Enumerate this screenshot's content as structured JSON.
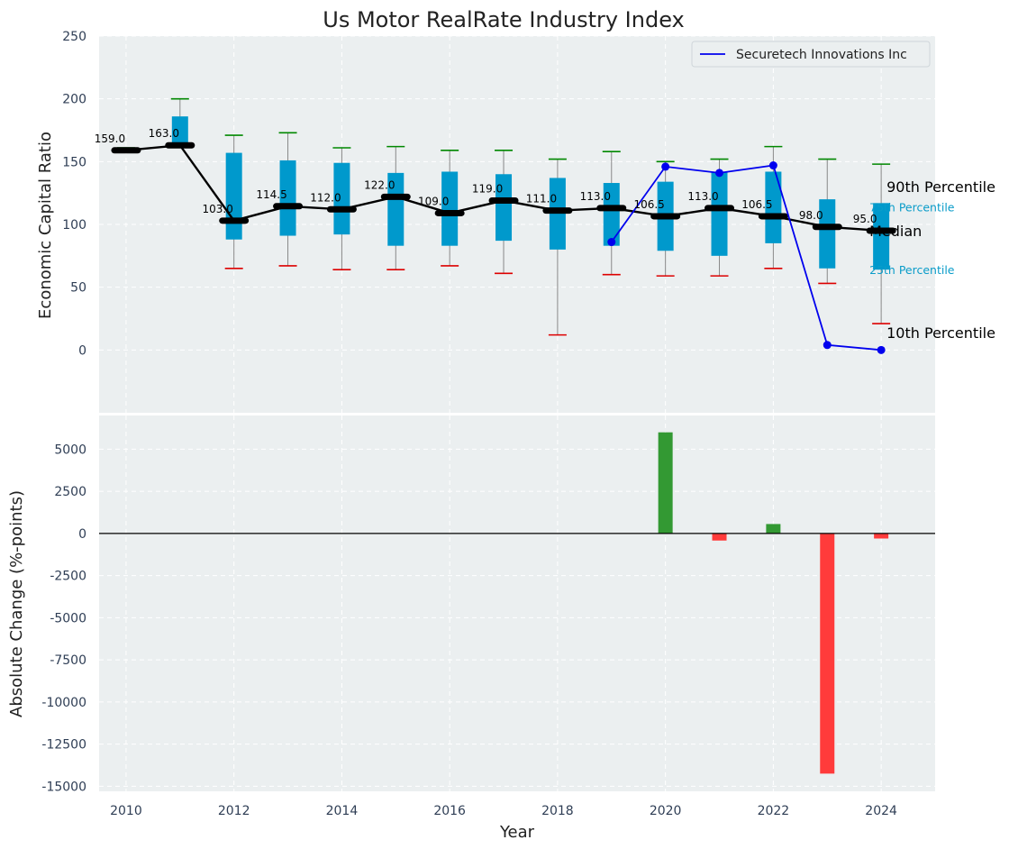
{
  "chart_data": [
    {
      "type": "box",
      "title": "Us Motor RealRate Industry Index",
      "xlabel": "",
      "ylabel": "Economic Capital Ratio",
      "ylim": [
        -50,
        250
      ],
      "yticks": [
        0,
        50,
        100,
        150,
        200,
        250
      ],
      "xlim": [
        2009.5,
        2025
      ],
      "x": [
        2010,
        2011,
        2012,
        2013,
        2014,
        2015,
        2016,
        2017,
        2018,
        2019,
        2020,
        2021,
        2022,
        2023,
        2024
      ],
      "p10": [
        159,
        163,
        65,
        67,
        64,
        64,
        67,
        61,
        12,
        60,
        59,
        59,
        65,
        53,
        21
      ],
      "p25": [
        159,
        163,
        88,
        91,
        92,
        83,
        83,
        87,
        80,
        83,
        79,
        75,
        85,
        65,
        64
      ],
      "median": [
        159.0,
        163.0,
        103.0,
        114.5,
        112.0,
        122.0,
        109.0,
        119.0,
        111.0,
        113.0,
        106.5,
        113.0,
        106.5,
        98.0,
        95.0
      ],
      "median_labels": [
        "159.0",
        "163.0",
        "103.0",
        "114.5",
        "112.0",
        "122.0",
        "109.0",
        "119.0",
        "111.0",
        "113.0",
        "106.5",
        "113.0",
        "106.5",
        "98.0",
        "95.0"
      ],
      "p75": [
        161,
        186,
        157,
        151,
        149,
        141,
        142,
        140,
        137,
        133,
        134,
        142,
        142,
        120,
        117
      ],
      "p90": [
        161,
        200,
        171,
        173,
        161,
        162,
        159,
        159,
        152,
        158,
        150,
        152,
        162,
        152,
        148
      ],
      "series": [
        {
          "name": "Securetech Innovations Inc",
          "x": [
            2019,
            2020,
            2021,
            2022,
            2023,
            2024
          ],
          "values": [
            86,
            146,
            141,
            147,
            4,
            0
          ],
          "color": "#0000ee"
        }
      ],
      "legend": "top-right",
      "annotations": [
        "90th Percentile",
        "75th Percentile",
        "Median",
        "25th Percentile",
        "10th Percentile"
      ],
      "grid": true,
      "colors": {
        "box": "#0099cc",
        "median": "#000000",
        "p90_cap": "#008800",
        "p10_cap": "#dd0000",
        "background": "#ebeff0"
      }
    },
    {
      "type": "bar",
      "xlabel": "Year",
      "ylabel": "Absolute Change (%-points)",
      "ylim": [
        -15300,
        7000
      ],
      "yticks": [
        -15000,
        -12500,
        -10000,
        -7500,
        -5000,
        -2500,
        0,
        2500,
        5000
      ],
      "xticks": [
        2010,
        2012,
        2014,
        2016,
        2018,
        2020,
        2022,
        2024
      ],
      "x": [
        2020,
        2021,
        2022,
        2023,
        2024
      ],
      "values": [
        6000,
        -420,
        560,
        -14250,
        -300
      ],
      "grid": true,
      "colors": {
        "positive": "#339933",
        "negative": "#ff3b3b"
      }
    }
  ]
}
